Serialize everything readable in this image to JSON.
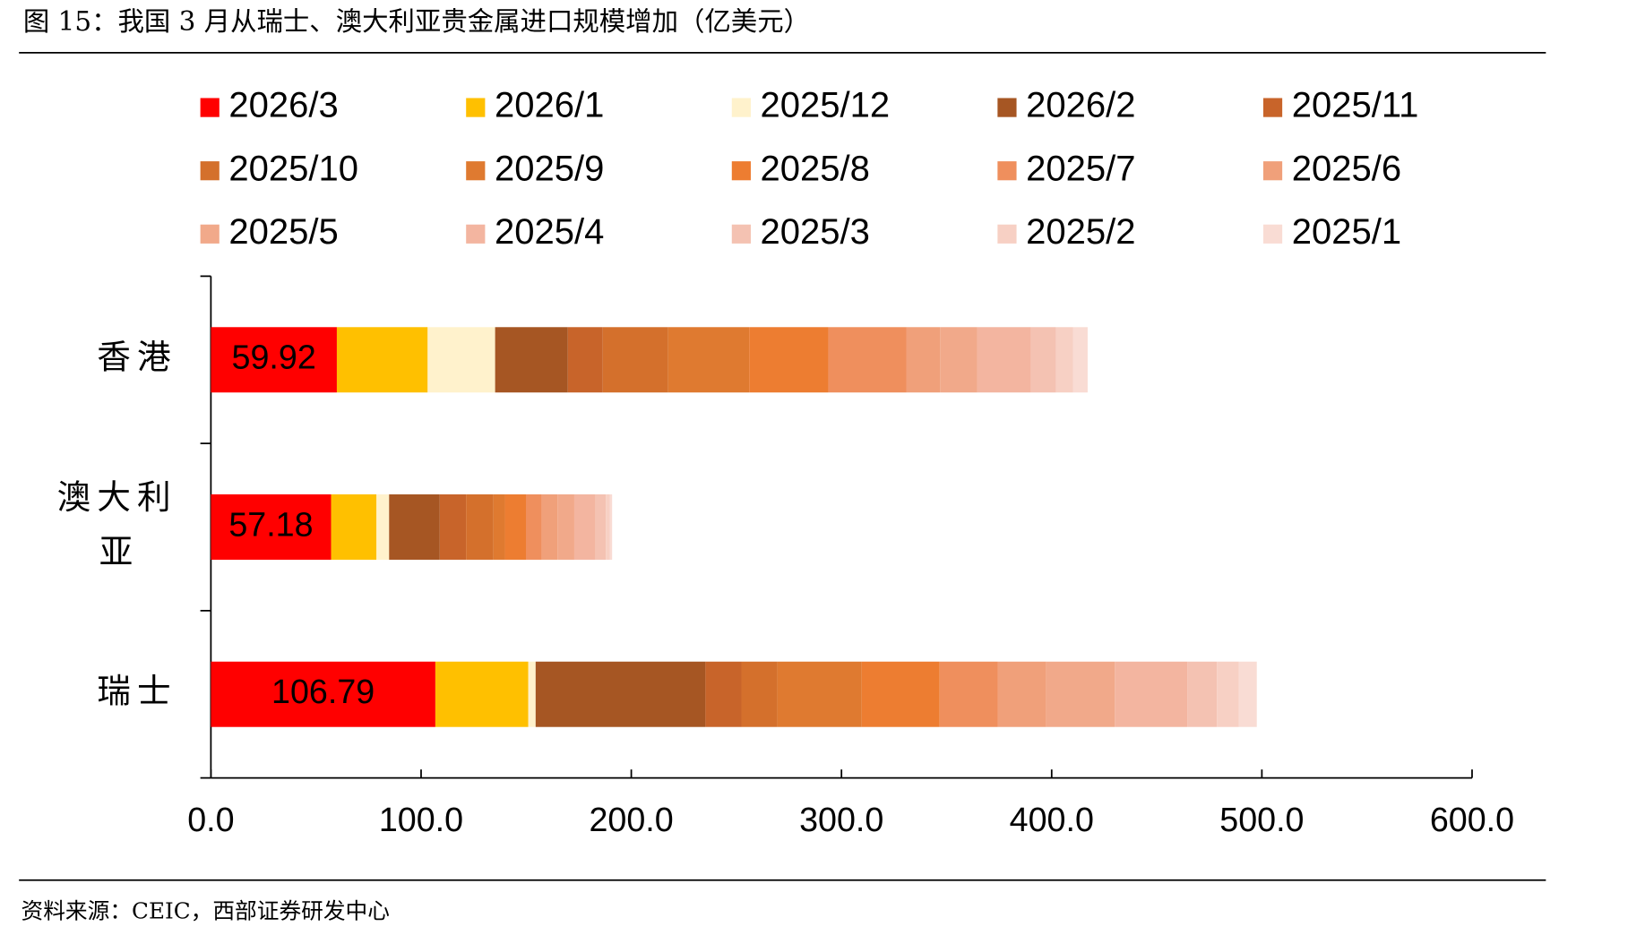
{
  "chart_data": {
    "type": "stacked-barh",
    "title": "图 15：我国 3 月从瑞士、澳大利亚贵金属进口规模增加（亿美元）",
    "source": "资料来源：CEIC，西部证券研发中心",
    "categories": [
      "香港",
      "澳大利亚",
      "瑞士"
    ],
    "series": [
      {
        "name": "2026/3",
        "color": "#ff0000",
        "values": [
          59.92,
          57.18,
          106.79
        ]
      },
      {
        "name": "2026/1",
        "color": "#ffc000",
        "values": [
          43.2,
          21.6,
          44.2
        ]
      },
      {
        "name": "2025/12",
        "color": "#fff2cc",
        "values": [
          32.1,
          6.0,
          3.5
        ]
      },
      {
        "name": "2026/2",
        "color": "#a65623",
        "values": [
          34.6,
          24.1,
          80.8
        ]
      },
      {
        "name": "2025/11",
        "color": "#c8642a",
        "values": [
          16.6,
          12.5,
          17.1
        ]
      },
      {
        "name": "2025/10",
        "color": "#d4702c",
        "values": [
          31.1,
          13.0,
          17.1
        ]
      },
      {
        "name": "2025/9",
        "color": "#df7a30",
        "values": [
          38.6,
          5.5,
          40.1
        ]
      },
      {
        "name": "2025/8",
        "color": "#ed7d31",
        "values": [
          37.6,
          10.0,
          37.1
        ]
      },
      {
        "name": "2025/7",
        "color": "#ef8f5d",
        "values": [
          37.1,
          7.5,
          27.6
        ]
      },
      {
        "name": "2025/6",
        "color": "#f0a07a",
        "values": [
          16.1,
          7.5,
          23.1
        ]
      },
      {
        "name": "2025/5",
        "color": "#f1a98a",
        "values": [
          17.6,
          8.0,
          32.6
        ]
      },
      {
        "name": "2025/4",
        "color": "#f3b5a0",
        "values": [
          25.6,
          10.0,
          34.6
        ]
      },
      {
        "name": "2025/3",
        "color": "#f4c2b2",
        "values": [
          12.0,
          5.0,
          14.0
        ]
      },
      {
        "name": "2025/2",
        "color": "#f7d0c4",
        "values": [
          8.0,
          2.0,
          10.5
        ]
      },
      {
        "name": "2025/1",
        "color": "#f9dcd4",
        "values": [
          7.0,
          1.0,
          8.5
        ]
      }
    ],
    "xlim": [
      0,
      600
    ],
    "xticks": [
      {
        "value": 0,
        "label": "0.0"
      },
      {
        "value": 100,
        "label": "100.0"
      },
      {
        "value": 200,
        "label": "200.0"
      },
      {
        "value": 300,
        "label": "300.0"
      },
      {
        "value": 400,
        "label": "400.0"
      },
      {
        "value": 500,
        "label": "500.0"
      },
      {
        "value": 600,
        "label": "600.0"
      }
    ]
  }
}
